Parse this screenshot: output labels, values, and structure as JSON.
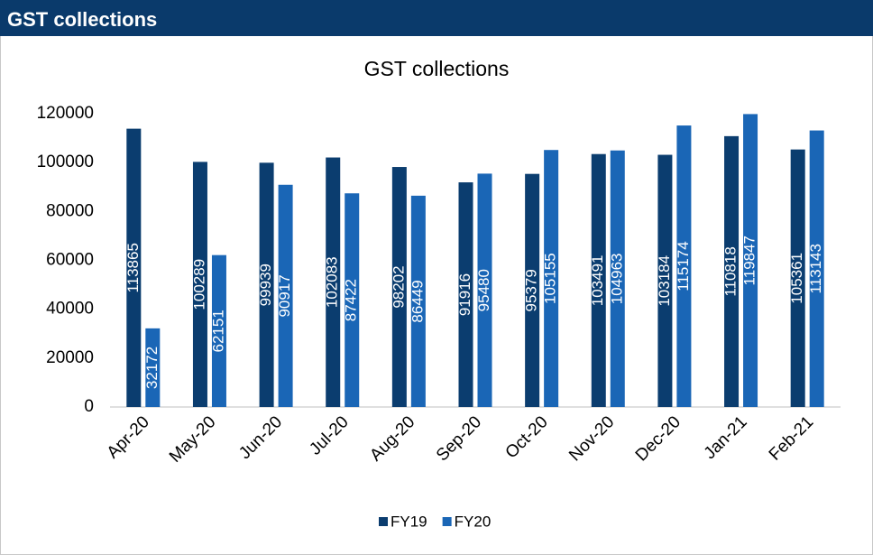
{
  "header": {
    "title": "GST collections"
  },
  "chart_data": {
    "type": "bar",
    "title": "GST collections",
    "categories": [
      "Apr-20",
      "May-20",
      "Jun-20",
      "Jul-20",
      "Aug-20",
      "Sep-20",
      "Oct-20",
      "Nov-20",
      "Dec-20",
      "Jan-21",
      "Feb-21"
    ],
    "series": [
      {
        "name": "FY19",
        "color": "#0b3d6f",
        "values": [
          113865,
          100289,
          99939,
          102083,
          98202,
          91916,
          95379,
          103491,
          103184,
          110818,
          105361
        ]
      },
      {
        "name": "FY20",
        "color": "#1a66b6",
        "values": [
          32172,
          62151,
          90917,
          87422,
          86449,
          95480,
          105155,
          104963,
          115174,
          119847,
          113143
        ]
      }
    ],
    "ylim": [
      0,
      120000
    ],
    "yticks": [
      0,
      20000,
      40000,
      60000,
      80000,
      100000,
      120000
    ],
    "grid": false,
    "legend": "bottom"
  }
}
